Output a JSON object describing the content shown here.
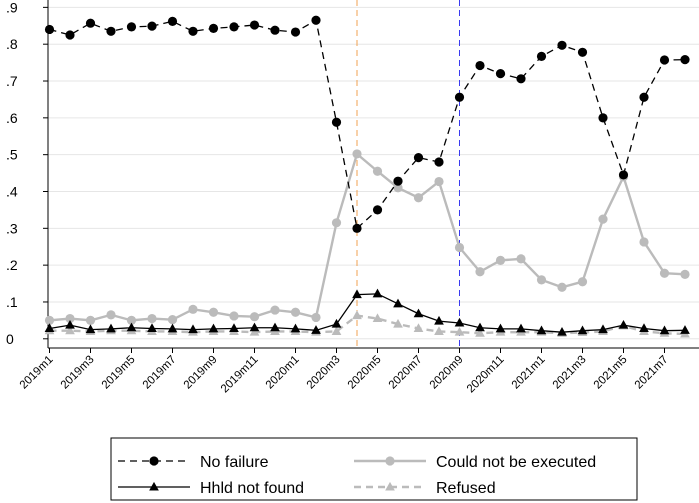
{
  "chart_data": {
    "type": "line",
    "x": [
      "2019m1",
      "2019m2",
      "2019m3",
      "2019m4",
      "2019m5",
      "2019m6",
      "2019m7",
      "2019m8",
      "2019m9",
      "2019m10",
      "2019m11",
      "2019m12",
      "2020m1",
      "2020m2",
      "2020m3",
      "2020m4",
      "2020m5",
      "2020m6",
      "2020m7",
      "2020m8",
      "2020m9",
      "2020m10",
      "2020m11",
      "2020m12",
      "2021m1",
      "2021m2",
      "2021m3",
      "2021m4",
      "2021m5",
      "2021m6",
      "2021m7",
      "2021m8"
    ],
    "xticks": [
      "2019m1",
      "2019m3",
      "2019m5",
      "2019m7",
      "2019m9",
      "2019m11",
      "2020m1",
      "2020m3",
      "2020m5",
      "2020m7",
      "2020m9",
      "2020m11",
      "2021m1",
      "2021m3",
      "2021m5",
      "2021m7"
    ],
    "yticks": [
      0,
      0.1,
      0.2,
      0.3,
      0.4,
      0.5,
      0.6,
      0.7,
      0.8,
      0.9
    ],
    "ytick_labels": [
      "0",
      ".1",
      ".2",
      ".3",
      ".4",
      ".5",
      ".6",
      ".7",
      ".8",
      ".9"
    ],
    "ylim": [
      -0.025,
      0.92
    ],
    "vlines": [
      {
        "x": "2020m4",
        "color": "#f0a050"
      },
      {
        "x": "2020m9",
        "color": "#3a3af0"
      }
    ],
    "series": [
      {
        "name": "No failure",
        "color": "#000000",
        "dash": "7,5",
        "marker": "circle",
        "values": [
          0.84,
          0.825,
          0.857,
          0.835,
          0.847,
          0.849,
          0.862,
          0.835,
          0.843,
          0.847,
          0.852,
          0.838,
          0.833,
          0.865,
          0.588,
          0.3,
          0.35,
          0.428,
          0.492,
          0.48,
          0.656,
          0.742,
          0.72,
          0.706,
          0.767,
          0.797,
          0.778,
          0.6,
          0.445,
          0.656,
          0.757,
          0.758
        ]
      },
      {
        "name": "Could not be executed",
        "color": "#bbbbbb",
        "dash": "",
        "marker": "circle",
        "values": [
          0.05,
          0.055,
          0.05,
          0.065,
          0.05,
          0.055,
          0.052,
          0.08,
          0.072,
          0.062,
          0.06,
          0.078,
          0.072,
          0.058,
          0.315,
          0.502,
          0.455,
          0.41,
          0.383,
          0.427,
          0.248,
          0.182,
          0.213,
          0.217,
          0.16,
          0.14,
          0.155,
          0.325,
          0.44,
          0.263,
          0.178,
          0.175
        ]
      },
      {
        "name": "Hhld not found",
        "color": "#000000",
        "dash": "",
        "marker": "triangle",
        "values": [
          0.028,
          0.037,
          0.025,
          0.027,
          0.03,
          0.028,
          0.027,
          0.025,
          0.027,
          0.028,
          0.03,
          0.03,
          0.027,
          0.023,
          0.04,
          0.12,
          0.122,
          0.095,
          0.068,
          0.048,
          0.043,
          0.03,
          0.027,
          0.027,
          0.022,
          0.018,
          0.022,
          0.025,
          0.037,
          0.028,
          0.022,
          0.023
        ]
      },
      {
        "name": "Refused",
        "color": "#bbbbbb",
        "dash": "7,5",
        "marker": "triangle",
        "values": [
          0.022,
          0.022,
          0.02,
          0.022,
          0.022,
          0.02,
          0.02,
          0.018,
          0.02,
          0.02,
          0.018,
          0.02,
          0.02,
          0.018,
          0.02,
          0.063,
          0.055,
          0.04,
          0.028,
          0.02,
          0.018,
          0.015,
          0.018,
          0.018,
          0.018,
          0.015,
          0.017,
          0.02,
          0.035,
          0.02,
          0.015,
          0.013
        ]
      }
    ],
    "legend": {
      "placement": "bottom"
    }
  }
}
